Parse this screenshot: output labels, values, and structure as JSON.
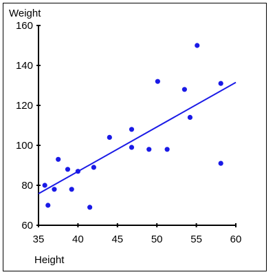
{
  "chart_data": {
    "type": "scatter",
    "title": "",
    "xlabel": "Height",
    "ylabel": "Weight",
    "xlim": [
      35,
      60
    ],
    "ylim": [
      60,
      160
    ],
    "xticks": [
      35,
      40,
      45,
      50,
      55,
      60
    ],
    "yticks": [
      60,
      80,
      100,
      120,
      140,
      160
    ],
    "xtick_labels": [
      "35",
      "40",
      "45",
      "50",
      "55",
      "60"
    ],
    "ytick_labels": [
      "60",
      "80",
      "100",
      "120",
      "140",
      "160"
    ],
    "grid": false,
    "legend": "none",
    "point_color": "#1a1ae6",
    "line_color": "#1a1ae6",
    "points": [
      {
        "x": 35.8,
        "y": 80
      },
      {
        "x": 36.2,
        "y": 70
      },
      {
        "x": 37.0,
        "y": 78
      },
      {
        "x": 37.5,
        "y": 93
      },
      {
        "x": 38.7,
        "y": 88
      },
      {
        "x": 39.2,
        "y": 78
      },
      {
        "x": 40.0,
        "y": 87
      },
      {
        "x": 41.5,
        "y": 69
      },
      {
        "x": 42.0,
        "y": 89
      },
      {
        "x": 44.0,
        "y": 104
      },
      {
        "x": 46.8,
        "y": 108
      },
      {
        "x": 46.8,
        "y": 99
      },
      {
        "x": 49.0,
        "y": 98
      },
      {
        "x": 50.1,
        "y": 132
      },
      {
        "x": 51.3,
        "y": 98
      },
      {
        "x": 53.5,
        "y": 128
      },
      {
        "x": 54.2,
        "y": 114
      },
      {
        "x": 55.1,
        "y": 150
      },
      {
        "x": 58.1,
        "y": 131
      },
      {
        "x": 58.1,
        "y": 91
      }
    ],
    "trendline": {
      "x": [
        35.0,
        60.0
      ],
      "y": [
        75.8,
        131.5
      ]
    }
  }
}
